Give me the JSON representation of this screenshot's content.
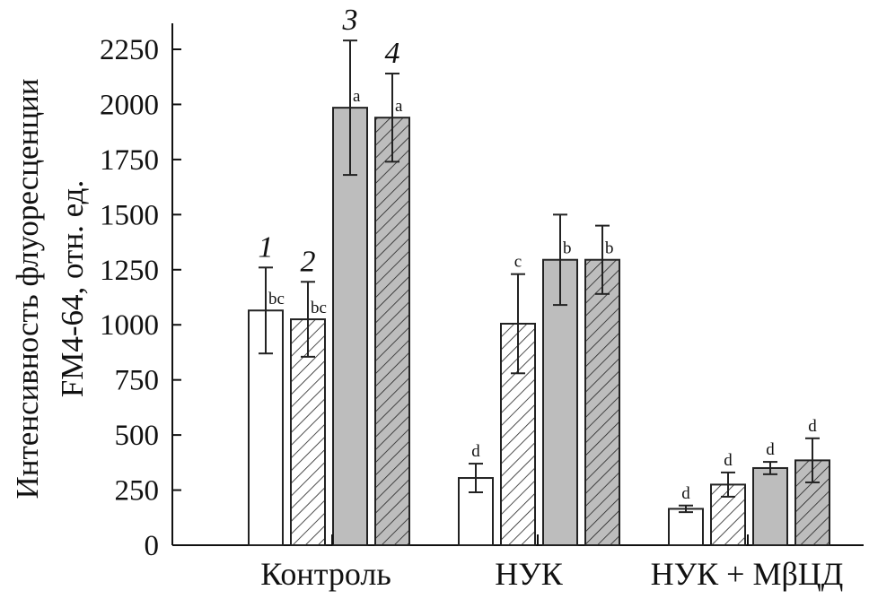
{
  "chart_data": {
    "type": "bar",
    "ylabel_line1": "Интенсивность флуоресценции",
    "ylabel_line2": "FM4-64, отн. ед.",
    "ylim": [
      0,
      2300
    ],
    "yticks": [
      0,
      250,
      500,
      750,
      1000,
      1250,
      1500,
      1750,
      2000,
      2250
    ],
    "categories": [
      "Контроль",
      "НУК",
      "НУК + MβЦД"
    ],
    "series": [
      {
        "name": "1",
        "pattern": "none",
        "fill": "#ffffff",
        "values": [
          1065,
          305,
          165
        ],
        "errors": [
          195,
          65,
          15
        ],
        "significance": [
          "bc",
          "d",
          "d"
        ]
      },
      {
        "name": "2",
        "pattern": "hatch",
        "fill": "#ffffff",
        "values": [
          1025,
          1005,
          275
        ],
        "errors": [
          170,
          225,
          55
        ],
        "significance": [
          "bc",
          "c",
          "d"
        ]
      },
      {
        "name": "3",
        "pattern": "none",
        "fill": "#bdbdbd",
        "values": [
          1985,
          1295,
          350
        ],
        "errors": [
          305,
          205,
          28
        ],
        "significance": [
          "a",
          "b",
          "d"
        ]
      },
      {
        "name": "4",
        "pattern": "hatch",
        "fill": "#bdbdbd",
        "values": [
          1940,
          1295,
          385
        ],
        "errors": [
          200,
          155,
          100
        ],
        "significance": [
          "a",
          "b",
          "d"
        ]
      }
    ],
    "grid": false,
    "legend": "none"
  }
}
